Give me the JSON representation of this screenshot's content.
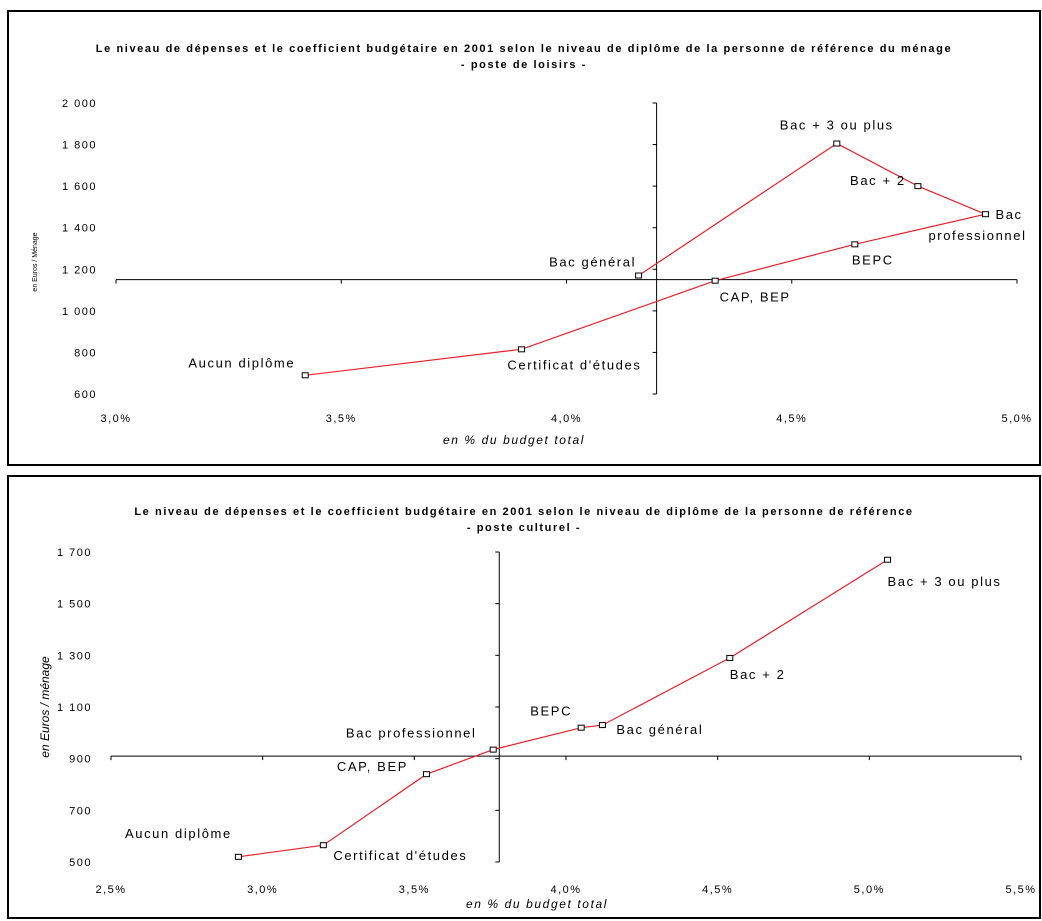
{
  "chart_data": [
    {
      "type": "scatter",
      "title": "Le niveau de dépenses et le coefficient budgétaire en 2001 selon le niveau de diplôme de la personne de référence du ménage",
      "subtitle": "- poste de loisirs -",
      "xlabel": "en %  du budget total",
      "ylabel": "en Euros / Ménage",
      "xlim": [
        3.0,
        5.0
      ],
      "ylim": [
        600,
        2000
      ],
      "x_ticks": [
        "3,0%",
        "3,5%",
        "4,0%",
        "4,5%",
        "5,0%"
      ],
      "y_ticks": [
        "600",
        "800",
        "1 000",
        "1 200",
        "1 400",
        "1 600",
        "1 800",
        "2 000"
      ],
      "x_axis_crossing_y": 1150,
      "y_axis_crossing_x": 4.2,
      "series": [
        {
          "points": [
            {
              "label": "Aucun diplôme",
              "x": 3.42,
              "y": 690
            },
            {
              "label": "Certificat d'études",
              "x": 3.9,
              "y": 815
            },
            {
              "label": "CAP, BEP",
              "x": 4.33,
              "y": 1145
            },
            {
              "label": "BEPC",
              "x": 4.64,
              "y": 1320
            },
            {
              "label": "Bac professionnel",
              "x": 4.93,
              "y": 1465
            },
            {
              "label": "Bac + 2",
              "x": 4.78,
              "y": 1600
            },
            {
              "label": "Bac + 3 ou plus",
              "x": 4.6,
              "y": 1805
            },
            {
              "label": "Bac général",
              "x": 4.16,
              "y": 1170
            }
          ]
        }
      ]
    },
    {
      "type": "scatter",
      "title": "Le niveau de dépenses et le coefficient budgétaire en 2001 selon le niveau de diplôme de la personne de référence",
      "subtitle": "- poste culturel -",
      "xlabel": "en % du budget total",
      "ylabel": "en Euros / ménage",
      "xlim": [
        2.5,
        5.5
      ],
      "ylim": [
        500,
        1700
      ],
      "x_ticks": [
        "2,5%",
        "3,0%",
        "3,5%",
        "4,0%",
        "4,5%",
        "5,0%",
        "5,5%"
      ],
      "y_ticks": [
        "500",
        "700",
        "900",
        "1 100",
        "1 300",
        "1 500",
        "1 700"
      ],
      "x_axis_crossing_y": 910,
      "y_axis_crossing_x": 3.78,
      "series": [
        {
          "points": [
            {
              "label": "Aucun diplôme",
              "x": 2.92,
              "y": 520
            },
            {
              "label": "Certificat d'études",
              "x": 3.2,
              "y": 565
            },
            {
              "label": "CAP, BEP",
              "x": 3.54,
              "y": 840
            },
            {
              "label": "Bac professionnel",
              "x": 3.76,
              "y": 935
            },
            {
              "label": "BEPC",
              "x": 4.05,
              "y": 1020
            },
            {
              "label": "Bac général",
              "x": 4.12,
              "y": 1030
            },
            {
              "label": "Bac + 2",
              "x": 4.54,
              "y": 1290
            },
            {
              "label": "Bac + 3 ou plus",
              "x": 5.06,
              "y": 1670
            }
          ]
        }
      ]
    }
  ]
}
